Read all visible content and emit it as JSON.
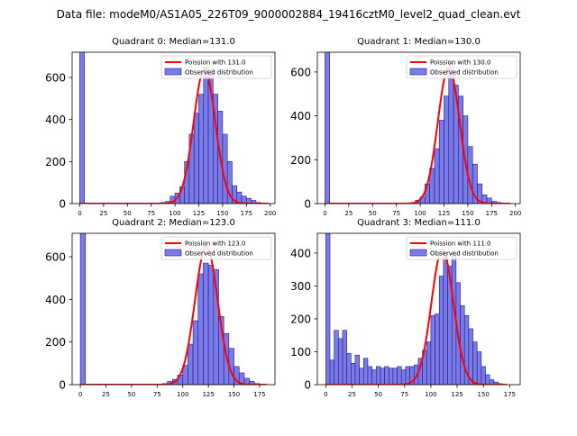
{
  "figure_title": "Data file: modeM0/AS1A05_226T09_9000002884_19416cztM0_level2_quad_clean.evt",
  "colors": {
    "bar_fill": "#7b7be8",
    "bar_edge": "#1a1a8c",
    "fit_line": "#ff0000"
  },
  "chart_data": [
    {
      "type": "bar",
      "title": "Quadrant 0: Median=131.0",
      "xlim": [
        -8,
        205
      ],
      "ylim": [
        0,
        720
      ],
      "xticks": [
        0,
        25,
        50,
        75,
        100,
        125,
        150,
        175,
        200
      ],
      "yticks": [
        0,
        200,
        400,
        600
      ],
      "bin_width": 5,
      "overflow_bins": [
        0
      ],
      "bins_x": [
        0,
        85,
        90,
        95,
        100,
        105,
        110,
        115,
        120,
        125,
        130,
        135,
        140,
        145,
        150,
        155,
        160,
        165,
        170,
        175,
        180,
        185,
        190,
        195
      ],
      "bins_y": [
        720,
        5,
        10,
        35,
        50,
        80,
        200,
        330,
        430,
        520,
        650,
        640,
        520,
        440,
        330,
        200,
        85,
        55,
        35,
        25,
        15,
        5,
        3,
        1
      ],
      "fit": {
        "mean": 131.0,
        "peak": 640,
        "sigma": 11.4,
        "x_start": 0,
        "x_end": 198
      },
      "legend": {
        "line_label": "Poission with 131.0",
        "bar_label": "Observed distribution",
        "position": "top-right"
      }
    },
    {
      "type": "bar",
      "title": "Quadrant 1: Median=130.0",
      "xlim": [
        -8,
        205
      ],
      "ylim": [
        0,
        690
      ],
      "xticks": [
        0,
        25,
        50,
        75,
        100,
        125,
        150,
        175,
        200
      ],
      "yticks": [
        0,
        200,
        400,
        600
      ],
      "bin_width": 5,
      "overflow_bins": [
        0
      ],
      "bins_x": [
        0,
        95,
        100,
        105,
        110,
        115,
        120,
        125,
        130,
        135,
        140,
        145,
        150,
        155,
        160,
        165,
        170,
        175,
        180
      ],
      "bins_y": [
        690,
        15,
        30,
        90,
        160,
        250,
        380,
        490,
        640,
        540,
        490,
        400,
        260,
        180,
        90,
        40,
        25,
        10,
        5
      ],
      "fit": {
        "mean": 130.0,
        "peak": 620,
        "sigma": 11.4,
        "x_start": 0,
        "x_end": 195
      },
      "legend": {
        "line_label": "Poission with 130.0",
        "bar_label": "Observed distribution",
        "position": "top-right"
      }
    },
    {
      "type": "bar",
      "title": "Quadrant 2: Median=123.0",
      "xlim": [
        -8,
        190
      ],
      "ylim": [
        0,
        710
      ],
      "xticks": [
        0,
        25,
        50,
        75,
        100,
        125,
        150,
        175
      ],
      "yticks": [
        0,
        200,
        400,
        600
      ],
      "bin_width": 5,
      "overflow_bins": [
        0
      ],
      "bins_x": [
        0,
        80,
        85,
        90,
        95,
        100,
        105,
        110,
        115,
        120,
        125,
        130,
        135,
        140,
        145,
        150,
        155,
        160,
        165,
        170,
        175
      ],
      "bins_y": [
        710,
        5,
        15,
        25,
        45,
        90,
        190,
        300,
        520,
        570,
        560,
        540,
        320,
        240,
        170,
        85,
        55,
        30,
        15,
        5,
        3
      ],
      "fit": {
        "mean": 123.0,
        "peak": 650,
        "sigma": 11.1,
        "x_start": 0,
        "x_end": 182
      },
      "legend": {
        "line_label": "Poission with 123.0",
        "bar_label": "Observed distribution",
        "position": "top-right"
      }
    },
    {
      "type": "bar",
      "title": "Quadrant 3: Median=111.0",
      "xlim": [
        -8,
        185
      ],
      "ylim": [
        0,
        460
      ],
      "xticks": [
        0,
        25,
        50,
        75,
        100,
        125,
        150,
        175
      ],
      "yticks": [
        0,
        100,
        200,
        300,
        400
      ],
      "bin_width": 4,
      "overflow_bins": [
        0
      ],
      "bins_x": [
        0,
        4,
        8,
        12,
        16,
        20,
        24,
        28,
        32,
        36,
        40,
        44,
        48,
        52,
        56,
        60,
        64,
        68,
        72,
        76,
        80,
        84,
        88,
        92,
        96,
        100,
        104,
        108,
        112,
        116,
        120,
        124,
        128,
        132,
        136,
        140,
        144,
        148,
        152,
        156,
        160,
        164
      ],
      "bins_y": [
        460,
        75,
        165,
        140,
        165,
        95,
        65,
        90,
        50,
        80,
        55,
        45,
        55,
        50,
        55,
        50,
        50,
        55,
        45,
        55,
        55,
        60,
        80,
        105,
        130,
        210,
        215,
        330,
        400,
        360,
        400,
        310,
        240,
        210,
        170,
        130,
        100,
        55,
        30,
        15,
        8,
        3
      ],
      "fit": {
        "mean": 111.0,
        "peak": 410,
        "sigma": 10.5,
        "x_start": 0,
        "x_end": 172
      },
      "legend": {
        "line_label": "Poission with 111.0",
        "bar_label": "Observed distribution",
        "position": "top-right"
      }
    }
  ]
}
